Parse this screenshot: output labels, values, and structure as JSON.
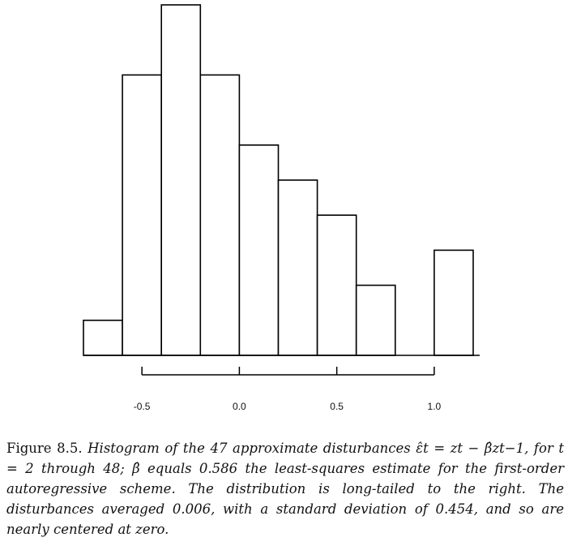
{
  "chart_data": {
    "type": "bar",
    "histogram": true,
    "bin_edges": [
      -0.8,
      -0.6,
      -0.4,
      -0.2,
      0.0,
      0.2,
      0.4,
      0.6,
      0.8,
      1.0,
      1.2
    ],
    "values": [
      1,
      8,
      10,
      8,
      6,
      5,
      4,
      2,
      0,
      3
    ],
    "x_ticks": [
      -0.5,
      0.0,
      0.5,
      1.0
    ],
    "x_tick_labels": [
      "-0.5",
      "0.0",
      "0.5",
      "1.0"
    ],
    "xlim": [
      -0.8,
      1.2
    ],
    "ylim": [
      0,
      10
    ],
    "y_axis_shown": false,
    "grid": false,
    "title": "",
    "xlabel": "",
    "ylabel": ""
  },
  "caption": {
    "lead": "Figure 8.5.",
    "body": "Histogram of the 47 approximate disturbances ε̂t = zt − β̂zt−1, for t = 2 through 48; β̂ equals 0.586 the least-squares estimate for the first-order autoregressive scheme. The distribution is long-tailed to the right. The disturbances averaged 0.006, with a standard deviation of 0.454, and so are nearly centered at zero."
  }
}
